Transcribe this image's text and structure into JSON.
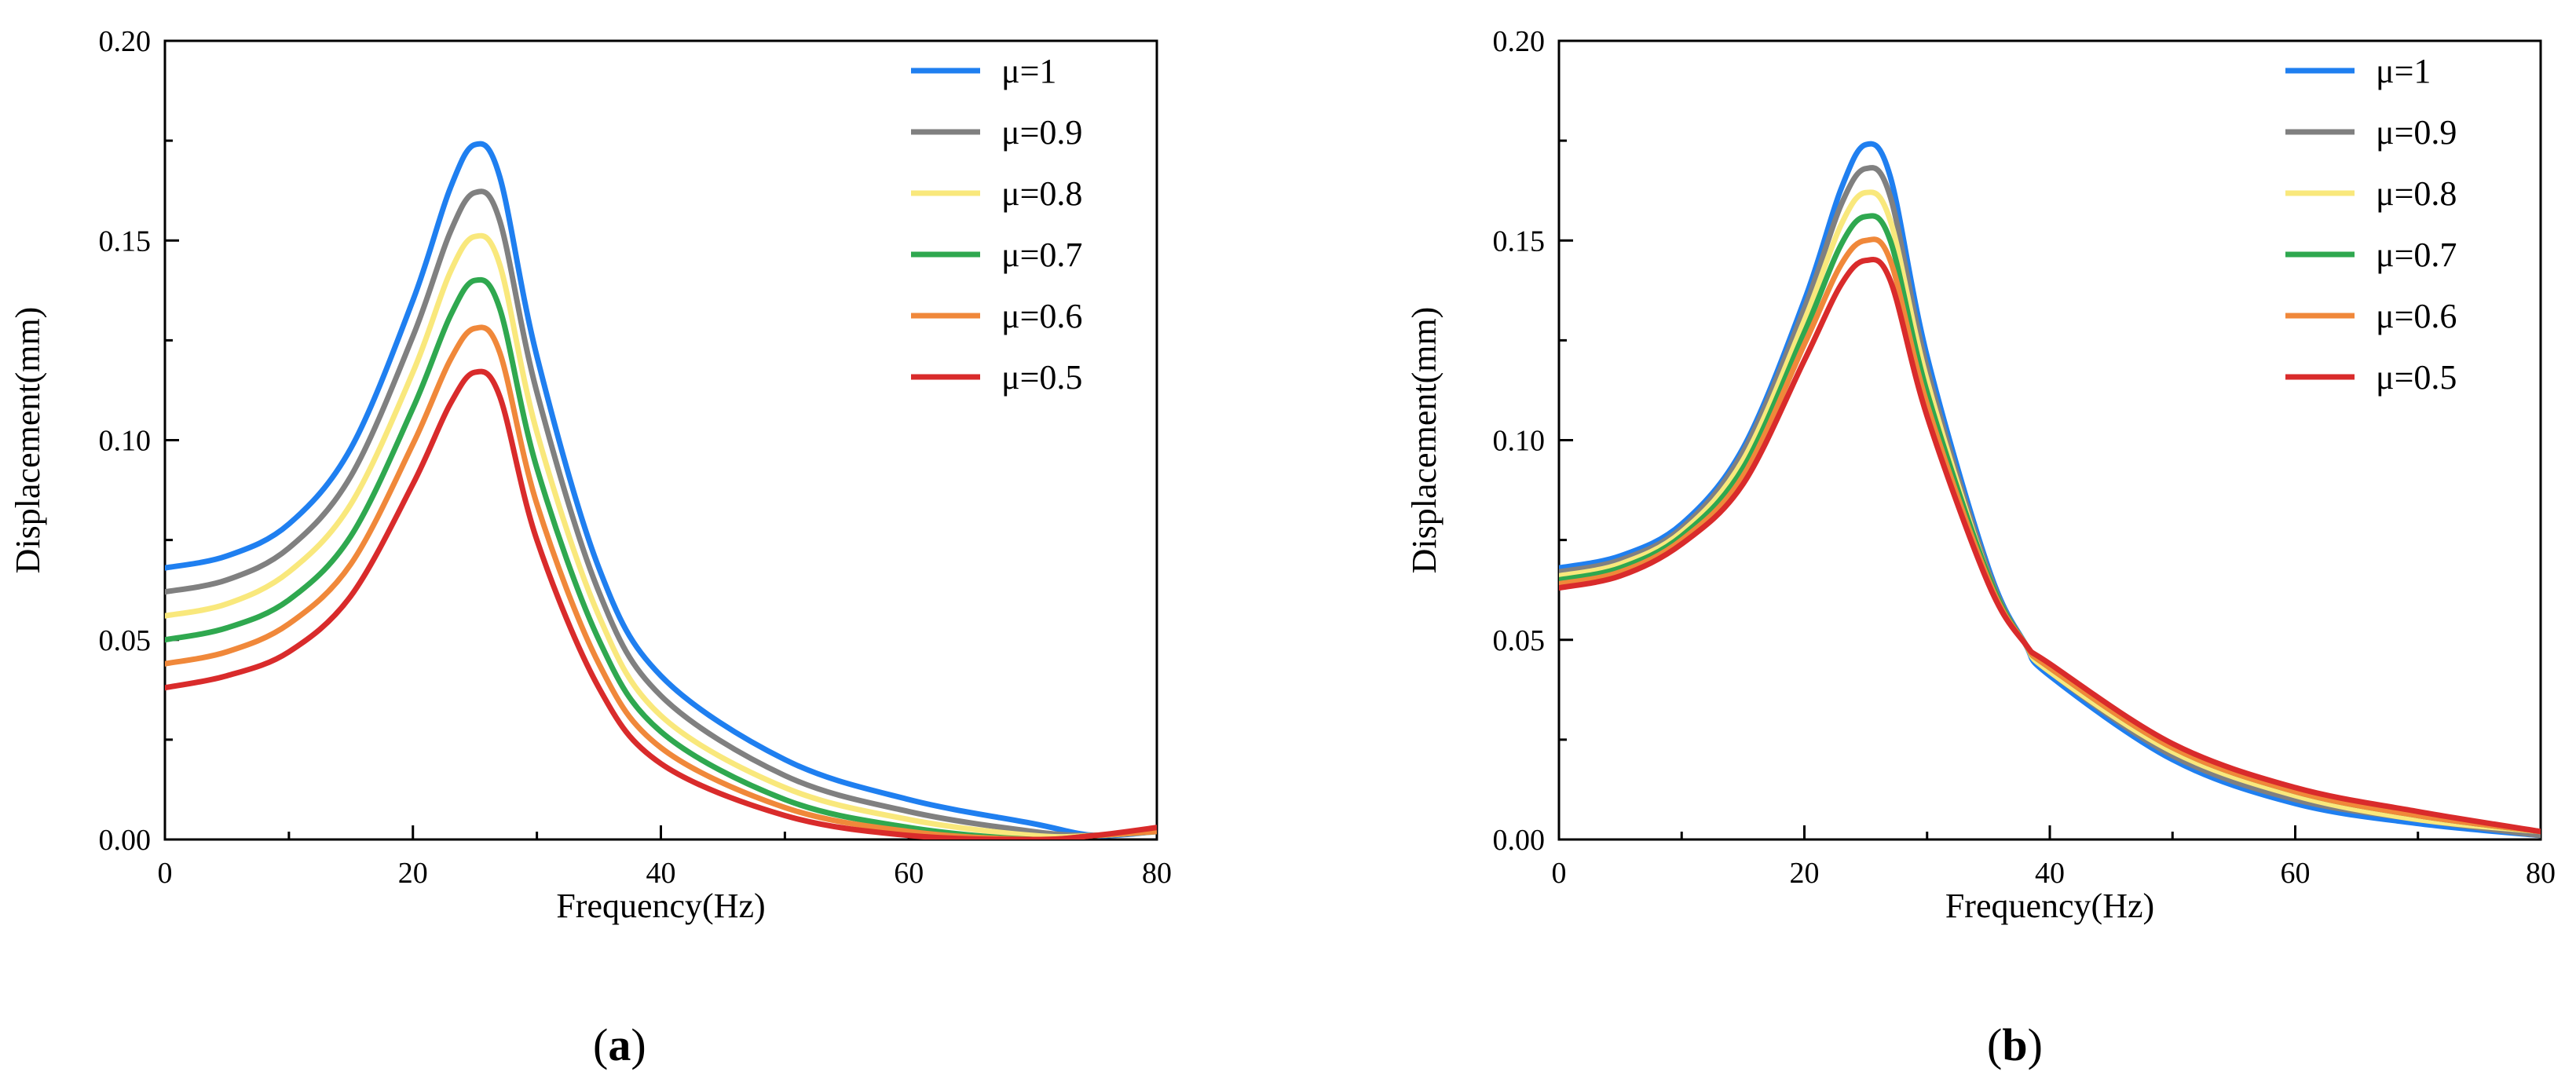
{
  "chart_data": [
    {
      "type": "line",
      "panel_label": "a",
      "xlabel": "Frequency(Hz)",
      "ylabel": "Displacement(mm)",
      "xlim": [
        0,
        80
      ],
      "ylim": [
        0,
        0.2
      ],
      "xticks": [
        0,
        20,
        40,
        60,
        80
      ],
      "xtick_labels": [
        "0",
        "20",
        "40",
        "60",
        "80"
      ],
      "yticks": [
        0,
        0.05,
        0.1,
        0.15,
        0.2
      ],
      "ytick_labels": [
        "0.00",
        "0.05",
        "0.10",
        "0.15",
        "0.20"
      ],
      "legend_position": "top-right",
      "x": [
        0,
        5,
        10,
        15,
        20,
        23,
        25,
        27,
        30,
        35,
        40,
        50,
        60,
        70,
        75,
        80
      ],
      "series": [
        {
          "name": "μ=1",
          "color": "#1f7ff0",
          "values": [
            0.068,
            0.071,
            0.079,
            0.098,
            0.135,
            0.163,
            0.174,
            0.166,
            0.121,
            0.068,
            0.041,
            0.02,
            0.01,
            0.004,
            0.001,
            0.002
          ]
        },
        {
          "name": "μ=0.9",
          "color": "#808080",
          "values": [
            0.062,
            0.065,
            0.073,
            0.091,
            0.126,
            0.152,
            0.162,
            0.155,
            0.112,
            0.062,
            0.036,
            0.016,
            0.007,
            0.002,
            0.001,
            0.002
          ]
        },
        {
          "name": "μ=0.8",
          "color": "#f9e87c",
          "values": [
            0.056,
            0.059,
            0.067,
            0.084,
            0.117,
            0.142,
            0.151,
            0.144,
            0.102,
            0.056,
            0.031,
            0.013,
            0.005,
            0.001,
            0.001,
            0.002
          ]
        },
        {
          "name": "μ=0.7",
          "color": "#2fa84f",
          "values": [
            0.05,
            0.053,
            0.06,
            0.076,
            0.108,
            0.131,
            0.14,
            0.133,
            0.093,
            0.05,
            0.027,
            0.01,
            0.003,
            0.0,
            0.001,
            0.002
          ]
        },
        {
          "name": "μ=0.6",
          "color": "#f0883a",
          "values": [
            0.044,
            0.047,
            0.054,
            0.069,
            0.099,
            0.12,
            0.128,
            0.122,
            0.084,
            0.044,
            0.023,
            0.008,
            0.002,
            0.0,
            0.001,
            0.002
          ]
        },
        {
          "name": "μ=0.5",
          "color": "#d92b2b",
          "values": [
            0.038,
            0.041,
            0.047,
            0.061,
            0.089,
            0.109,
            0.117,
            0.111,
            0.075,
            0.038,
            0.019,
            0.006,
            0.001,
            0.0,
            0.001,
            0.003
          ]
        }
      ]
    },
    {
      "type": "line",
      "panel_label": "b",
      "xlabel": "Frequency(Hz)",
      "ylabel": "Displacement(mm)",
      "xlim": [
        0,
        80
      ],
      "ylim": [
        0,
        0.2
      ],
      "xticks": [
        0,
        20,
        40,
        60,
        80
      ],
      "xtick_labels": [
        "0",
        "20",
        "40",
        "60",
        "80"
      ],
      "yticks": [
        0,
        0.05,
        0.1,
        0.15,
        0.2
      ],
      "ytick_labels": [
        "0.00",
        "0.05",
        "0.10",
        "0.15",
        "0.20"
      ],
      "legend_position": "top-right",
      "x": [
        0,
        5,
        10,
        15,
        20,
        23,
        25,
        27,
        30,
        35,
        38,
        40,
        50,
        60,
        70,
        80
      ],
      "series": [
        {
          "name": "μ=1",
          "color": "#1f7ff0",
          "values": [
            0.068,
            0.071,
            0.079,
            0.098,
            0.135,
            0.163,
            0.174,
            0.166,
            0.121,
            0.068,
            0.049,
            0.041,
            0.02,
            0.009,
            0.004,
            0.001
          ]
        },
        {
          "name": "μ=0.9",
          "color": "#808080",
          "values": [
            0.067,
            0.07,
            0.078,
            0.097,
            0.133,
            0.159,
            0.168,
            0.161,
            0.118,
            0.067,
            0.049,
            0.042,
            0.021,
            0.01,
            0.005,
            0.001
          ]
        },
        {
          "name": "μ=0.8",
          "color": "#f9e87c",
          "values": [
            0.066,
            0.069,
            0.077,
            0.095,
            0.13,
            0.154,
            0.162,
            0.155,
            0.115,
            0.066,
            0.049,
            0.042,
            0.022,
            0.011,
            0.005,
            0.002
          ]
        },
        {
          "name": "μ=0.7",
          "color": "#2fa84f",
          "values": [
            0.065,
            0.068,
            0.076,
            0.093,
            0.127,
            0.149,
            0.156,
            0.15,
            0.112,
            0.066,
            0.049,
            0.043,
            0.023,
            0.012,
            0.006,
            0.002
          ]
        },
        {
          "name": "μ=0.6",
          "color": "#f0883a",
          "values": [
            0.064,
            0.067,
            0.075,
            0.091,
            0.124,
            0.144,
            0.15,
            0.145,
            0.109,
            0.065,
            0.049,
            0.043,
            0.023,
            0.012,
            0.006,
            0.002
          ]
        },
        {
          "name": "μ=0.5",
          "color": "#d92b2b",
          "values": [
            0.063,
            0.066,
            0.074,
            0.089,
            0.12,
            0.139,
            0.145,
            0.14,
            0.106,
            0.064,
            0.049,
            0.044,
            0.024,
            0.013,
            0.007,
            0.002
          ]
        }
      ]
    }
  ]
}
